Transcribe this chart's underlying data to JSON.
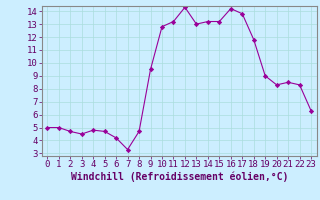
{
  "x": [
    0,
    1,
    2,
    3,
    4,
    5,
    6,
    7,
    8,
    9,
    10,
    11,
    12,
    13,
    14,
    15,
    16,
    17,
    18,
    19,
    20,
    21,
    22,
    23
  ],
  "y": [
    5.0,
    5.0,
    4.7,
    4.5,
    4.8,
    4.7,
    4.2,
    3.3,
    4.7,
    9.5,
    12.8,
    13.2,
    14.3,
    13.0,
    13.2,
    13.2,
    14.2,
    13.8,
    11.8,
    9.0,
    8.3,
    8.5,
    8.3,
    6.3
  ],
  "line_color": "#990099",
  "marker_color": "#990099",
  "bg_color": "#cceeff",
  "grid_color": "#aadddd",
  "xlabel": "Windchill (Refroidissement éolien,°C)",
  "xlim_min": -0.5,
  "xlim_max": 23.5,
  "ylim_min": 2.8,
  "ylim_max": 14.4,
  "xticks": [
    0,
    1,
    2,
    3,
    4,
    5,
    6,
    7,
    8,
    9,
    10,
    11,
    12,
    13,
    14,
    15,
    16,
    17,
    18,
    19,
    20,
    21,
    22,
    23
  ],
  "yticks": [
    3,
    4,
    5,
    6,
    7,
    8,
    9,
    10,
    11,
    12,
    13,
    14
  ],
  "xlabel_fontsize": 7.0,
  "tick_fontsize": 6.5
}
